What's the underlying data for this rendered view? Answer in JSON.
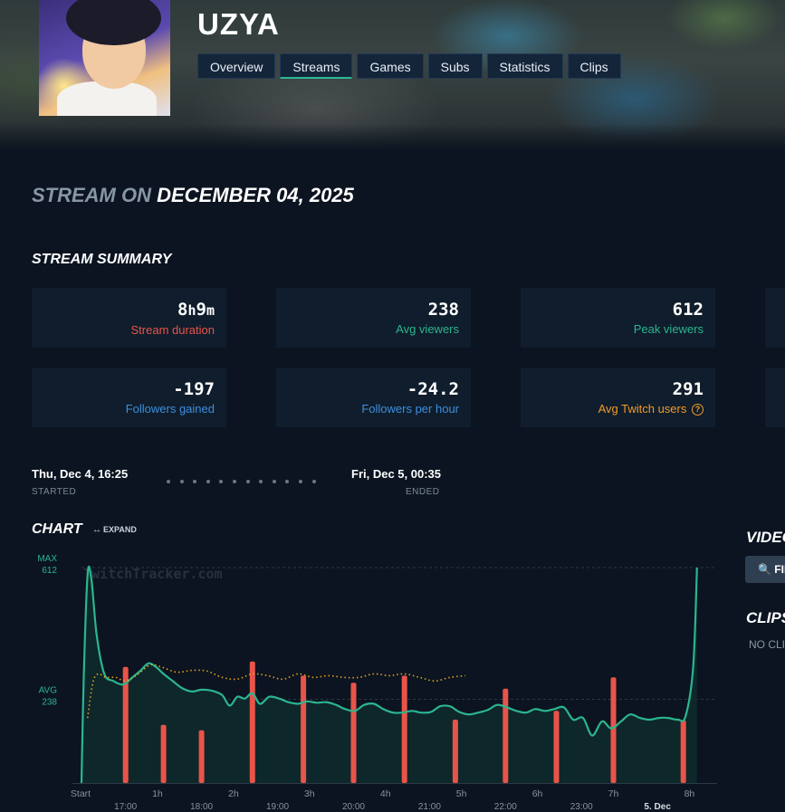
{
  "channel": {
    "name": "UZYA"
  },
  "nav": {
    "tabs": [
      "Overview",
      "Streams",
      "Games",
      "Subs",
      "Statistics",
      "Clips"
    ],
    "active": "Streams"
  },
  "stream": {
    "title_prefix": "STREAM ON",
    "title_date": "DECEMBER 04, 2025"
  },
  "summary": {
    "heading": "STREAM SUMMARY",
    "duration": {
      "hours": "8",
      "hours_unit": "h",
      "minutes": "9",
      "minutes_unit": "m",
      "label": "Stream duration"
    },
    "avg_viewers": {
      "value": "238",
      "label": "Avg viewers"
    },
    "peak_viewers": {
      "value": "612",
      "label": "Peak viewers"
    },
    "followers_gained": {
      "value": "-197",
      "label": "Followers gained"
    },
    "followers_per_hour": {
      "value": "-24.2",
      "label": "Followers per hour"
    },
    "avg_twitch_users": {
      "value": "291",
      "label": "Avg Twitch users",
      "help_glyph": "?"
    }
  },
  "timeline": {
    "start_time": "Thu, Dec 4, 16:25",
    "start_label": "STARTED",
    "end_time": "Fri, Dec 5, 00:35",
    "end_label": "ENDED"
  },
  "chart_section": {
    "heading": "CHART",
    "expand_label": "EXPAND",
    "expand_glyph": "↔"
  },
  "colors": {
    "viewers_line": "#2bb58f",
    "twitch_users_line": "#e6a21f",
    "follower_bars": "#e8544a",
    "background": "#0b1420"
  },
  "chart_data": {
    "type": "line",
    "watermark": "TwitchTracker.com",
    "y_markers": [
      {
        "label": "MAX",
        "value": 612
      },
      {
        "label": "AVG",
        "value": 238
      }
    ],
    "ylim": [
      0,
      640
    ],
    "x_top_ticks": [
      "Start",
      "1h",
      "2h",
      "3h",
      "4h",
      "5h",
      "6h",
      "7h",
      "8h"
    ],
    "x_top_tick_hours": [
      0,
      1,
      2,
      3,
      4,
      5,
      6,
      7,
      8
    ],
    "x_bottom_ticks": [
      "17:00",
      "18:00",
      "19:00",
      "20:00",
      "21:00",
      "22:00",
      "23:00",
      "5. Dec"
    ],
    "x_bottom_tick_hours": [
      0.58,
      1.58,
      2.58,
      3.58,
      4.58,
      5.58,
      6.58,
      7.58
    ],
    "xlim_hours": [
      0,
      8.15
    ],
    "series": [
      {
        "type": "line",
        "hours": [
          0,
          0.03,
          0.08,
          0.13,
          0.2,
          0.3,
          0.42,
          0.55,
          0.67,
          0.78,
          0.88,
          0.98,
          1.08,
          1.2,
          1.32,
          1.45,
          1.58,
          1.72,
          1.85,
          1.95,
          2.05,
          2.15,
          2.25,
          2.35,
          2.47,
          2.6,
          2.72,
          2.85,
          2.97,
          3.1,
          3.22,
          3.35,
          3.47,
          3.6,
          3.72,
          3.85,
          3.97,
          4.1,
          4.22,
          4.35,
          4.47,
          4.6,
          4.72,
          4.85,
          4.97,
          5.1,
          5.22,
          5.35,
          5.47,
          5.6,
          5.72,
          5.85,
          5.97,
          6.1,
          6.22,
          6.35,
          6.47,
          6.6,
          6.72,
          6.85,
          6.97,
          7.1,
          7.22,
          7.35,
          7.47,
          7.6,
          7.72,
          7.85,
          7.95,
          8.05,
          8.1
        ],
        "values": [
          0,
          300,
          590,
          580,
          420,
          310,
          290,
          280,
          300,
          320,
          340,
          330,
          310,
          290,
          270,
          260,
          265,
          262,
          250,
          220,
          245,
          240,
          255,
          225,
          245,
          240,
          230,
          225,
          232,
          228,
          230,
          222,
          210,
          205,
          222,
          225,
          210,
          200,
          200,
          205,
          200,
          202,
          218,
          218,
          202,
          195,
          200,
          208,
          222,
          215,
          205,
          200,
          210,
          205,
          210,
          215,
          180,
          185,
          135,
          175,
          155,
          175,
          195,
          185,
          180,
          185,
          185,
          180,
          190,
          330,
          612
        ]
      },
      {
        "type": "line",
        "dashed": true,
        "hours": [
          0.08,
          0.15,
          0.22,
          0.32,
          0.45,
          0.58,
          0.75,
          0.9,
          1.05,
          1.25,
          1.45,
          1.65,
          1.85,
          2.05,
          2.25,
          2.45,
          2.65,
          2.85,
          3.05,
          3.25,
          3.45,
          3.65,
          3.85,
          4.05,
          4.25,
          4.45,
          4.65,
          4.85,
          5.05
        ],
        "values": [
          185,
          285,
          310,
          300,
          300,
          290,
          310,
          335,
          330,
          315,
          320,
          318,
          300,
          295,
          310,
          305,
          295,
          310,
          300,
          305,
          300,
          300,
          310,
          305,
          310,
          300,
          290,
          300,
          305
        ]
      },
      {
        "type": "bar",
        "hours": [
          0.58,
          1.08,
          1.58,
          2.25,
          2.92,
          3.58,
          4.25,
          4.92,
          5.58,
          6.25,
          7.0,
          7.92
        ],
        "values": [
          330,
          165,
          150,
          345,
          305,
          285,
          305,
          180,
          268,
          205,
          300,
          178
        ]
      }
    ]
  },
  "side": {
    "videos_heading": "VIDEOS",
    "find_button": "FIND",
    "search_glyph": "🔍",
    "clips_heading": "CLIPS",
    "no_clips": "NO CLIPS"
  }
}
